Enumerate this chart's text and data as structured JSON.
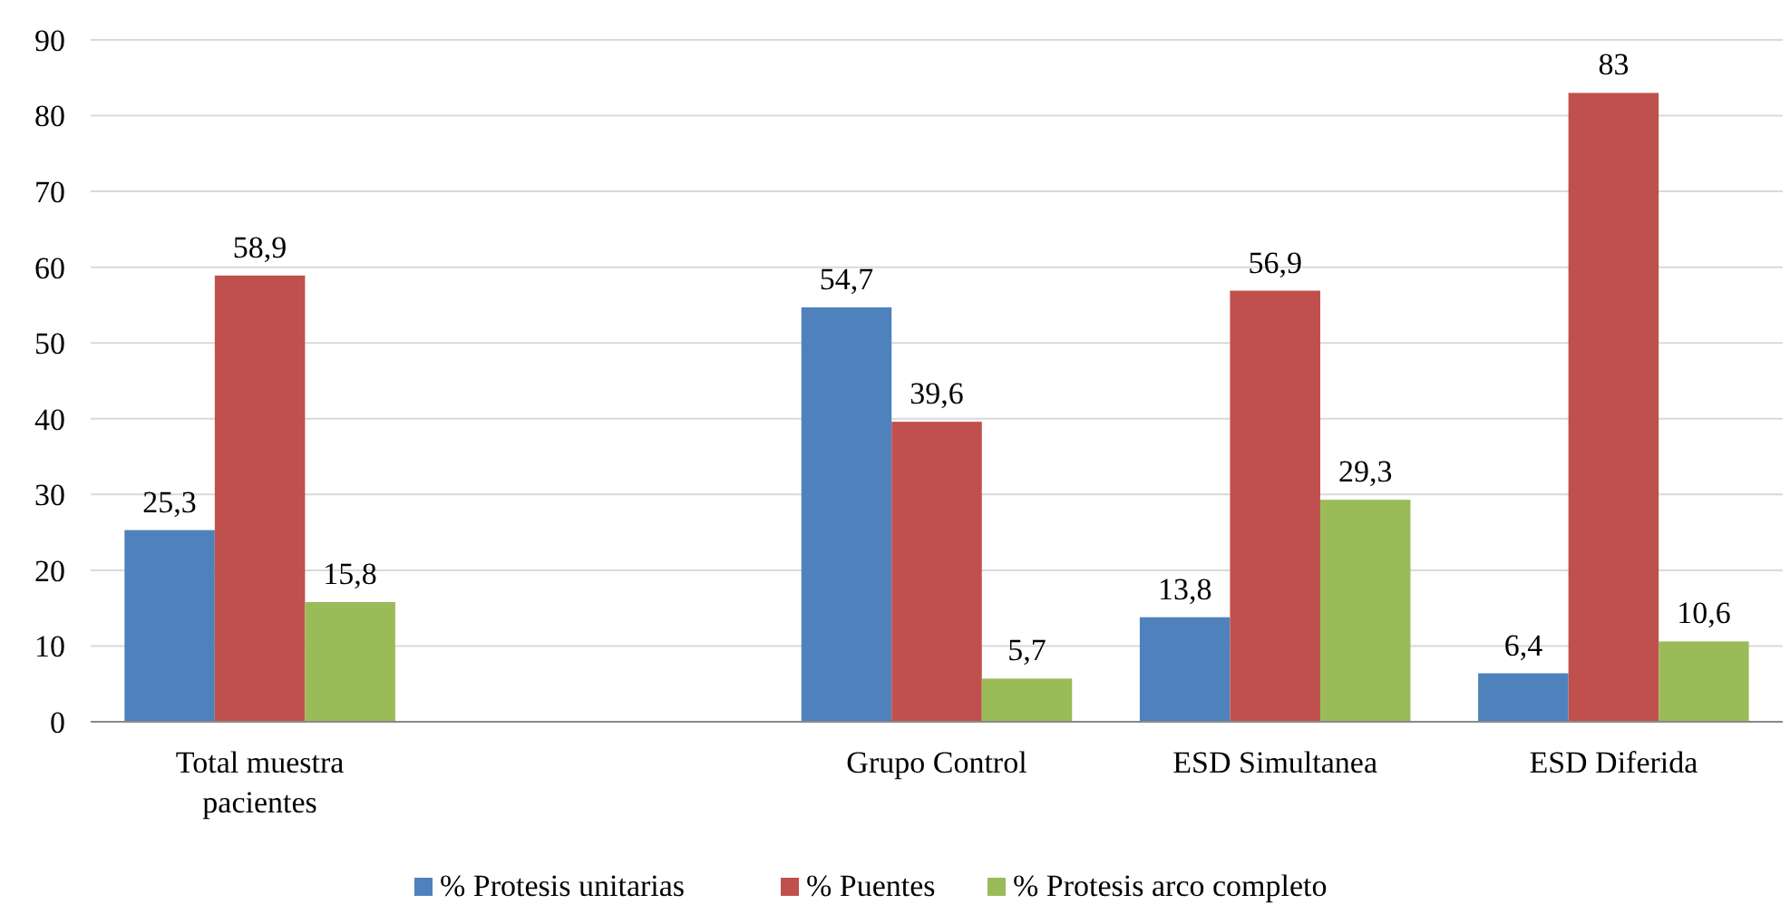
{
  "chart_data": {
    "type": "bar",
    "categories": [
      "Total muestra pacientes",
      null,
      "Grupo Control",
      "ESD Simultanea",
      "ESD Diferida"
    ],
    "series": [
      {
        "name": "% Protesis unitarias",
        "color": "#4f81bd",
        "values": [
          25.3,
          null,
          54.7,
          13.8,
          6.4
        ],
        "value_labels": [
          "25,3",
          null,
          "54,7",
          "13,8",
          "6,4"
        ]
      },
      {
        "name": "% Puentes",
        "color": "#c0504d",
        "values": [
          58.9,
          null,
          39.6,
          56.9,
          83
        ],
        "value_labels": [
          "58,9",
          null,
          "39,6",
          "56,9",
          "83"
        ]
      },
      {
        "name": "% Protesis arco completo",
        "color": "#9bbb59",
        "values": [
          15.8,
          null,
          5.7,
          29.3,
          10.6
        ],
        "value_labels": [
          "15,8",
          null,
          "5,7",
          "29,3",
          "10,6"
        ]
      }
    ],
    "ylim": [
      0,
      90
    ],
    "yticks": [
      0,
      10,
      20,
      30,
      40,
      50,
      60,
      70,
      80,
      90
    ],
    "grid": "y",
    "legend": "bottom"
  }
}
